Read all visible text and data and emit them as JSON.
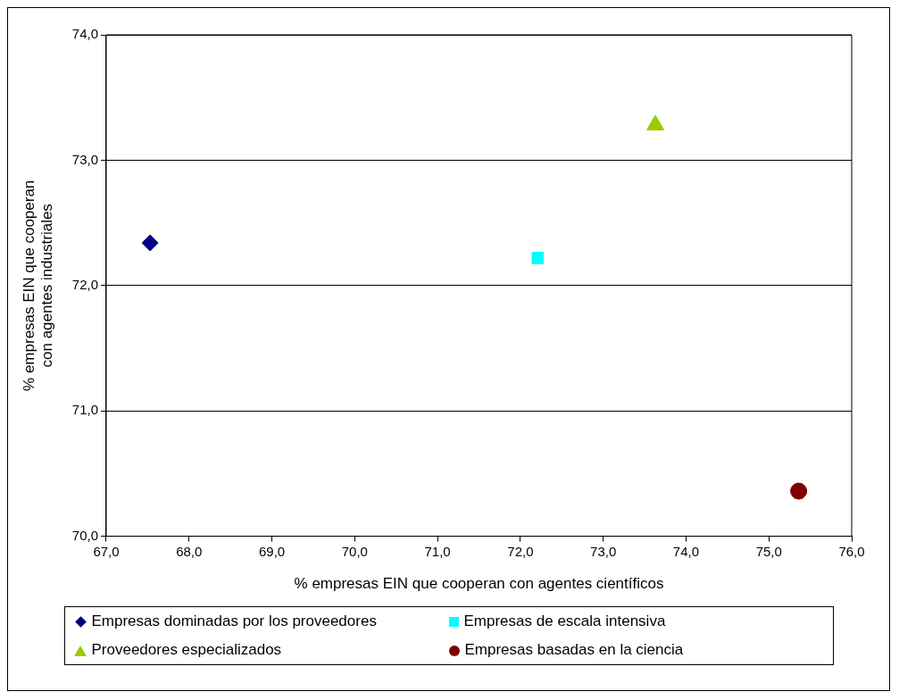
{
  "chart_data": {
    "type": "scatter",
    "xlabel": "% empresas EIN que cooperan con agentes científicos",
    "ylabel": "% empresas EIN que cooperan con agentes industriales",
    "xlim": [
      67,
      76
    ],
    "ylim": [
      70,
      74
    ],
    "xticks": [
      {
        "value": 67,
        "label": "67,0"
      },
      {
        "value": 68,
        "label": "68,0"
      },
      {
        "value": 69,
        "label": "69,0"
      },
      {
        "value": 70,
        "label": "70,0"
      },
      {
        "value": 71,
        "label": "71,0"
      },
      {
        "value": 72,
        "label": "72,0"
      },
      {
        "value": 73,
        "label": "73,0"
      },
      {
        "value": 74,
        "label": "74,0"
      },
      {
        "value": 75,
        "label": "75,0"
      },
      {
        "value": 76,
        "label": "76,0"
      }
    ],
    "yticks": [
      {
        "value": 70,
        "label": "70,0"
      },
      {
        "value": 71,
        "label": "71,0"
      },
      {
        "value": 72,
        "label": "72,0"
      },
      {
        "value": 73,
        "label": "73,0"
      },
      {
        "value": 74,
        "label": "74,0"
      }
    ],
    "grid": "y",
    "legend": "bottom",
    "series": [
      {
        "name": "Empresas dominadas por los proveedores",
        "color": "#000080",
        "marker": "diamond",
        "x": [
          67.53
        ],
        "values": [
          72.34
        ]
      },
      {
        "name": "Empresas de escala intensiva",
        "color": "#00ffff",
        "marker": "square",
        "x": [
          72.21
        ],
        "values": [
          72.22
        ]
      },
      {
        "name": "Proveedores especializados",
        "color": "#99cc00",
        "marker": "triangle",
        "x": [
          73.63
        ],
        "values": [
          73.28
        ]
      },
      {
        "name": "Empresas basadas en la ciencia",
        "color": "#800000",
        "marker": "circle",
        "x": [
          75.36
        ],
        "values": [
          70.36
        ]
      }
    ]
  }
}
